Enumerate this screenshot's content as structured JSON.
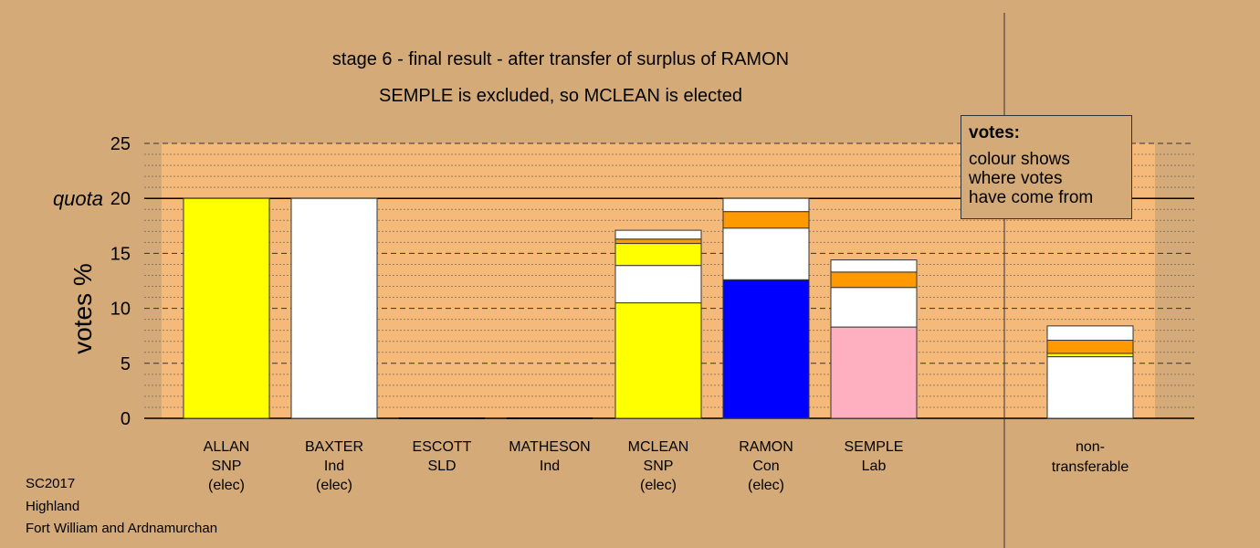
{
  "chart_data": {
    "type": "bar",
    "stacked": true,
    "title": "stage 6 - final result - after transfer of surplus of RAMON",
    "subtitle": "SEMPLE is excluded, so MCLEAN is elected",
    "ylabel": "votes %",
    "ylim": [
      0,
      25
    ],
    "yticks": [
      0,
      5,
      10,
      15,
      20,
      25
    ],
    "quota": 20,
    "quota_label": "quota",
    "grid": true,
    "candidates": [
      {
        "name": "ALLAN",
        "party": "SNP",
        "status": "(elec)",
        "segments": [
          {
            "value": 20,
            "color": "#ffff00"
          }
        ]
      },
      {
        "name": "BAXTER",
        "party": "Ind",
        "status": "(elec)",
        "segments": [
          {
            "value": 20,
            "color": "#ffffff"
          }
        ]
      },
      {
        "name": "ESCOTT",
        "party": "SLD",
        "status": "",
        "segments": []
      },
      {
        "name": "MATHESON",
        "party": "Ind",
        "status": "",
        "segments": []
      },
      {
        "name": "MCLEAN",
        "party": "SNP",
        "status": "(elec)",
        "segments": [
          {
            "value": 10.5,
            "color": "#ffff00"
          },
          {
            "value": 3.4,
            "color": "#ffffff"
          },
          {
            "value": 2.0,
            "color": "#ffff00"
          },
          {
            "value": 0.4,
            "color": "#ff9900"
          },
          {
            "value": 0.8,
            "color": "#ffffff"
          }
        ]
      },
      {
        "name": "RAMON",
        "party": "Con",
        "status": "(elec)",
        "segments": [
          {
            "value": 12.6,
            "color": "#0000ff"
          },
          {
            "value": 4.7,
            "color": "#ffffff"
          },
          {
            "value": 1.5,
            "color": "#ff9900"
          },
          {
            "value": 1.2,
            "color": "#ffffff"
          }
        ]
      },
      {
        "name": "SEMPLE",
        "party": "Lab",
        "status": "",
        "segments": [
          {
            "value": 8.3,
            "color": "#ffb0c0"
          },
          {
            "value": 3.6,
            "color": "#ffffff"
          },
          {
            "value": 1.4,
            "color": "#ff9900"
          },
          {
            "value": 1.1,
            "color": "#ffffff"
          }
        ]
      }
    ],
    "nontransferable": {
      "label_line1": "non-",
      "label_line2": "transferable",
      "segments": [
        {
          "value": 5.6,
          "color": "#ffffff"
        },
        {
          "value": 0.3,
          "color": "#ffff00"
        },
        {
          "value": 1.2,
          "color": "#ff9900"
        },
        {
          "value": 1.3,
          "color": "#ffffff"
        }
      ]
    },
    "legend": {
      "title": "votes:",
      "lines": [
        "colour shows",
        "where votes",
        "have come from"
      ],
      "position": "top-right"
    }
  },
  "footer": {
    "line1": "SC2017",
    "line2": "Highland",
    "line3": "Fort William and Ardnamurchan"
  },
  "colors": {
    "background": "#d4aa78",
    "plot_area": "#f5b97a"
  }
}
